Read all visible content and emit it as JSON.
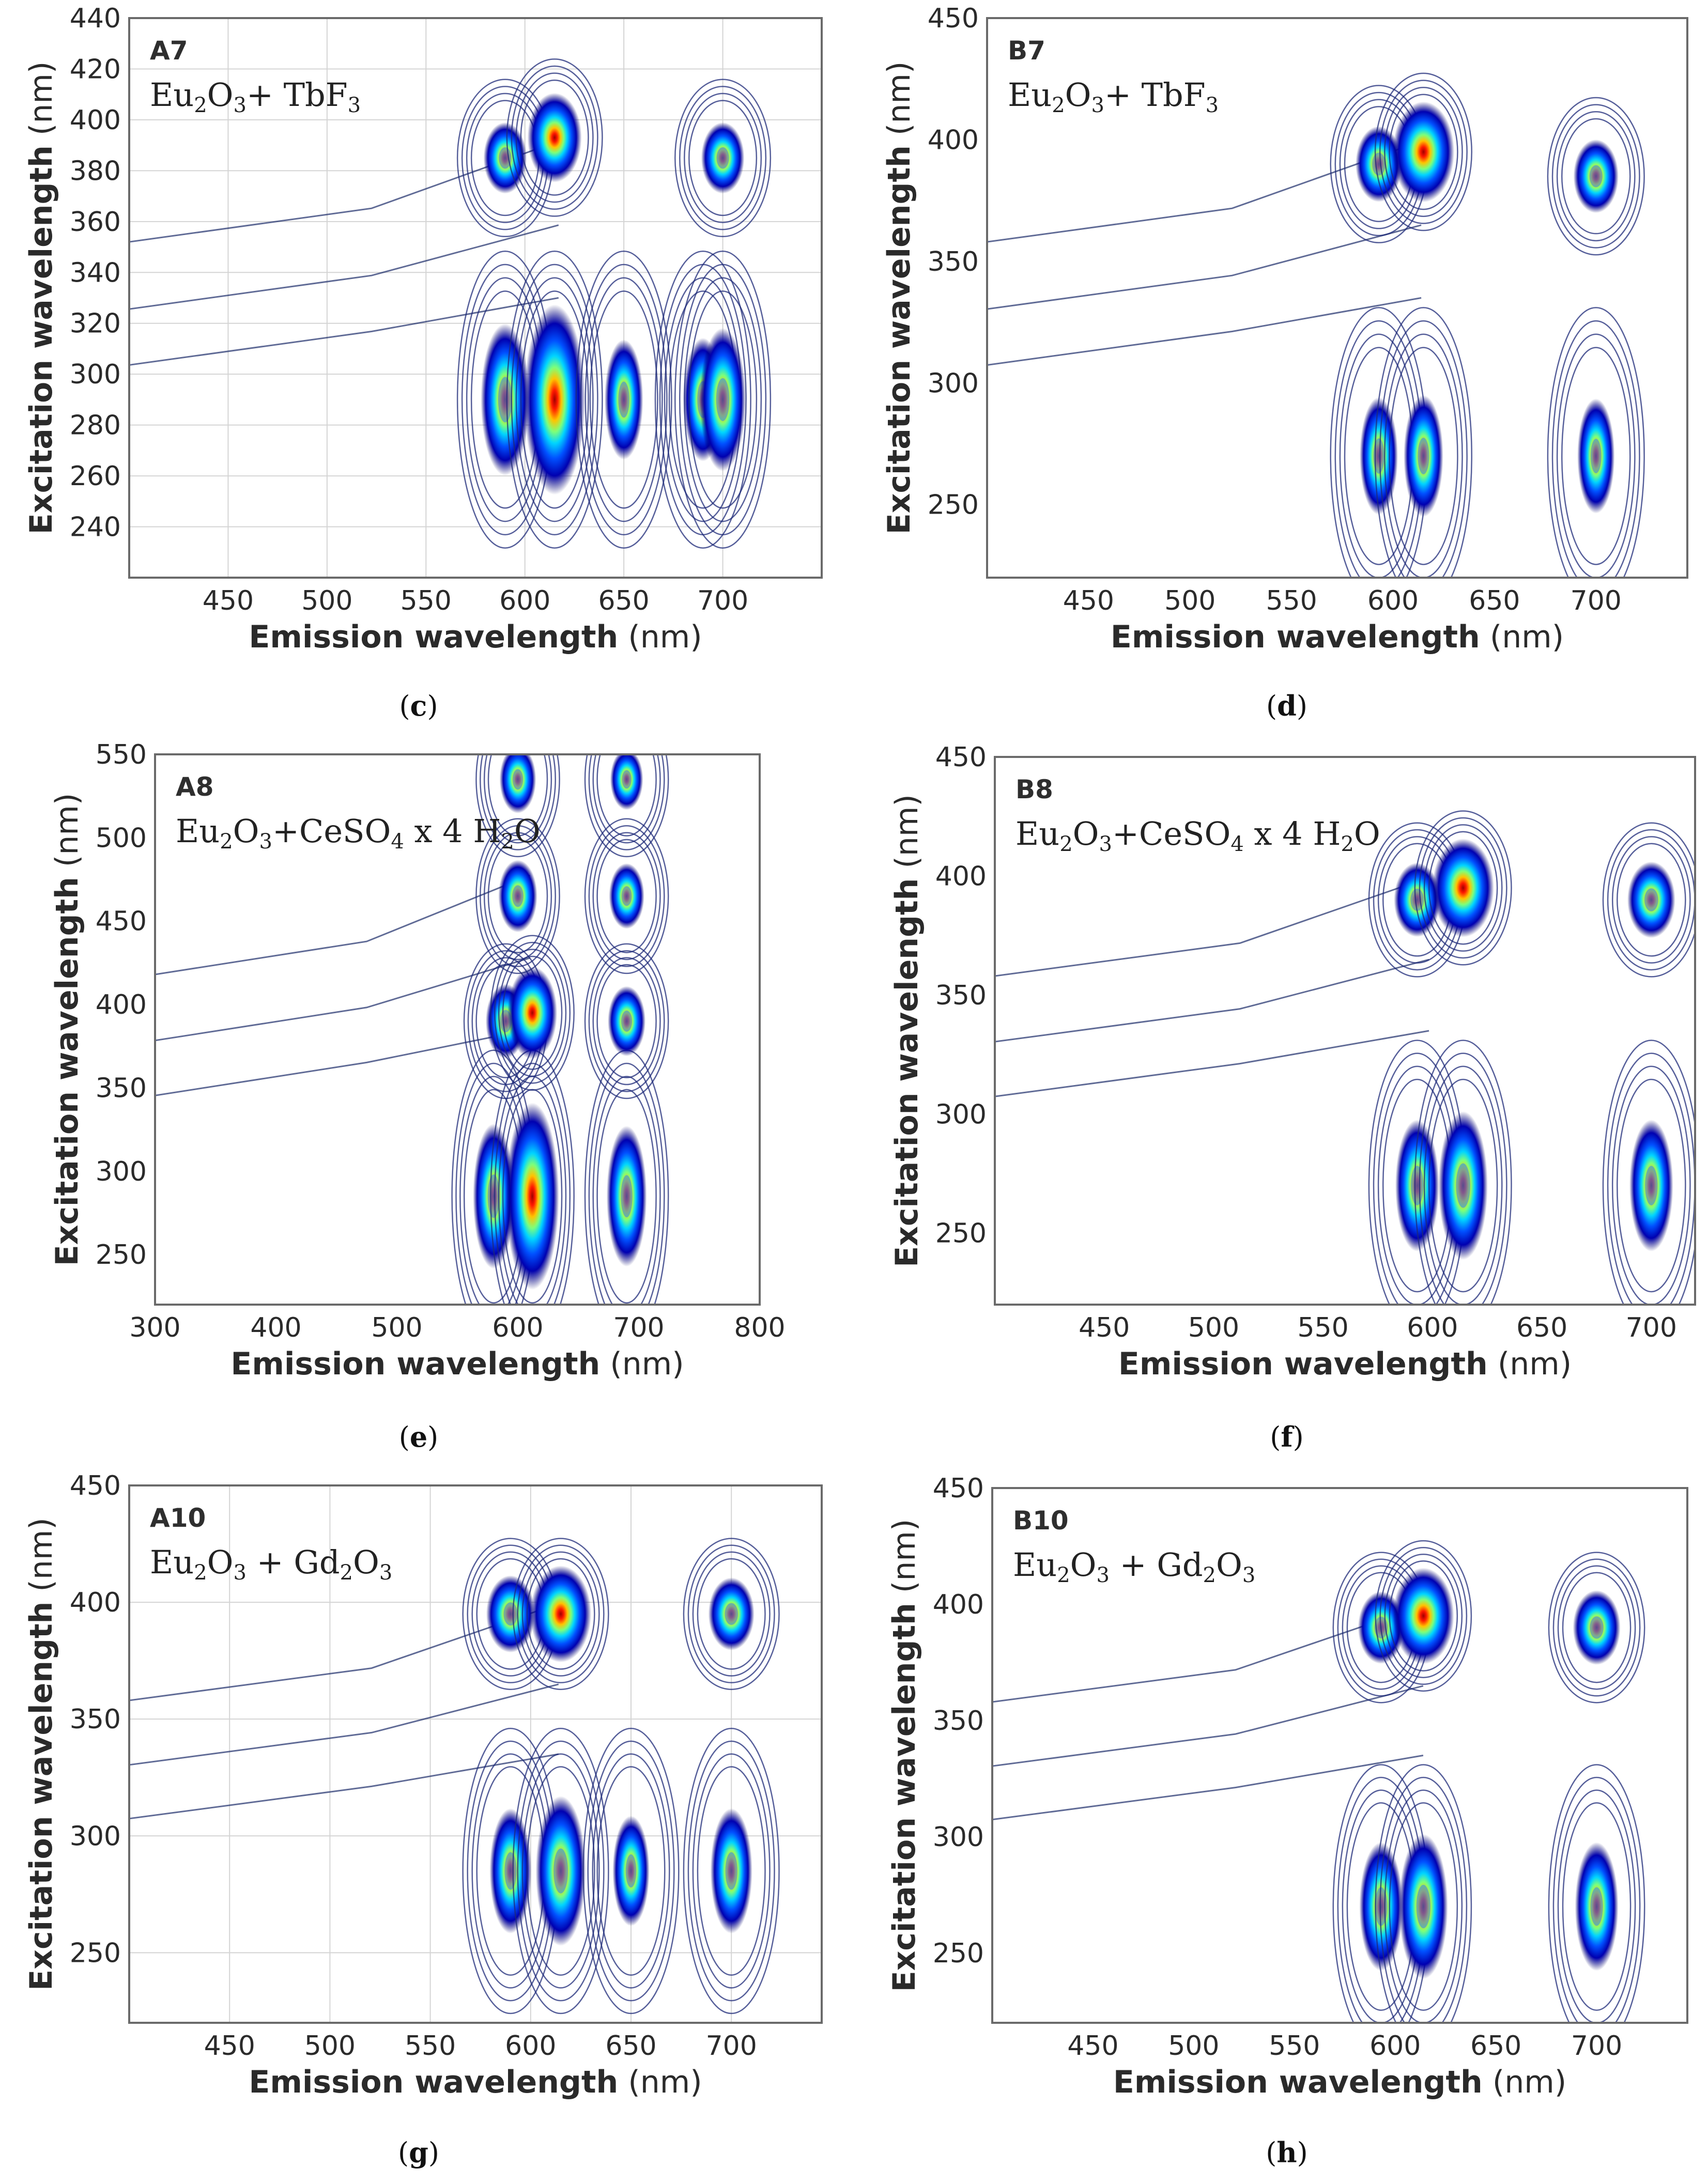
{
  "chart_data": [
    {
      "type": "heatmap",
      "panel": "c",
      "sample": "A7",
      "composition": [
        "Eu",
        "2",
        "O",
        "3",
        "+ TbF",
        "3",
        ""
      ],
      "xlabel": "Emission wavelength",
      "ylabel": "Excitation wavelength",
      "unit": "(nm)",
      "xlim": [
        400,
        750
      ],
      "ylim": [
        220,
        440
      ],
      "xticks": [
        450,
        500,
        550,
        600,
        650,
        700
      ],
      "yticks": [
        240,
        260,
        280,
        300,
        320,
        340,
        360,
        380,
        400,
        420,
        440
      ],
      "grid": true,
      "peaks": [
        {
          "em": 590,
          "ex": 290,
          "intensity": 0.55
        },
        {
          "em": 615,
          "ex": 290,
          "intensity": 1.0
        },
        {
          "em": 650,
          "ex": 290,
          "intensity": 0.18
        },
        {
          "em": 690,
          "ex": 290,
          "intensity": 0.22
        },
        {
          "em": 700,
          "ex": 290,
          "intensity": 0.45
        },
        {
          "em": 590,
          "ex": 385,
          "intensity": 0.35
        },
        {
          "em": 615,
          "ex": 393,
          "intensity": 0.75
        },
        {
          "em": 700,
          "ex": 385,
          "intensity": 0.35
        }
      ],
      "caption": "c"
    },
    {
      "type": "heatmap",
      "panel": "d",
      "sample": "B7",
      "composition": [
        "Eu",
        "2",
        "O",
        "3",
        "+ TbF",
        "3",
        ""
      ],
      "xlabel": "Emission wavelength",
      "ylabel": "Excitation wavelength",
      "unit": "(nm)",
      "xlim": [
        400,
        745
      ],
      "ylim": [
        220,
        450
      ],
      "xticks": [
        450,
        500,
        550,
        600,
        650,
        700
      ],
      "yticks": [
        250,
        300,
        350,
        400,
        450
      ],
      "grid": false,
      "peaks": [
        {
          "em": 593,
          "ex": 390,
          "intensity": 0.45
        },
        {
          "em": 615,
          "ex": 395,
          "intensity": 1.0
        },
        {
          "em": 700,
          "ex": 385,
          "intensity": 0.4
        },
        {
          "em": 593,
          "ex": 270,
          "intensity": 0.15
        },
        {
          "em": 615,
          "ex": 270,
          "intensity": 0.2
        },
        {
          "em": 700,
          "ex": 270,
          "intensity": 0.12
        }
      ],
      "caption": "d"
    },
    {
      "type": "heatmap",
      "panel": "e",
      "sample": "A8",
      "composition": [
        "Eu",
        "2",
        "O",
        "3",
        "+CeSO",
        "4",
        " x 4 H",
        "2",
        "O"
      ],
      "xlabel": "Emission wavelength",
      "ylabel": "Excitation wavelength",
      "unit": "(nm)",
      "xlim": [
        300,
        800
      ],
      "ylim": [
        220,
        550
      ],
      "xticks": [
        300,
        400,
        500,
        600,
        700,
        800
      ],
      "yticks": [
        250,
        300,
        350,
        400,
        450,
        500,
        550
      ],
      "grid": false,
      "peaks": [
        {
          "em": 580,
          "ex": 285,
          "intensity": 0.5
        },
        {
          "em": 612,
          "ex": 285,
          "intensity": 1.0
        },
        {
          "em": 690,
          "ex": 285,
          "intensity": 0.45
        },
        {
          "em": 590,
          "ex": 390,
          "intensity": 0.45
        },
        {
          "em": 612,
          "ex": 395,
          "intensity": 0.85
        },
        {
          "em": 690,
          "ex": 390,
          "intensity": 0.35
        },
        {
          "em": 600,
          "ex": 465,
          "intensity": 0.4
        },
        {
          "em": 690,
          "ex": 465,
          "intensity": 0.25
        },
        {
          "em": 600,
          "ex": 535,
          "intensity": 0.3
        },
        {
          "em": 690,
          "ex": 535,
          "intensity": 0.15
        }
      ],
      "caption": "e"
    },
    {
      "type": "heatmap",
      "panel": "f",
      "sample": "B8",
      "composition": [
        "Eu",
        "2",
        "O",
        "3",
        "+CeSO",
        "4",
        " x 4 H",
        "2",
        "O"
      ],
      "xlabel": "Emission wavelength",
      "ylabel": "Excitation wavelength",
      "unit": "(nm)",
      "xlim": [
        400,
        720
      ],
      "ylim": [
        220,
        450
      ],
      "xticks": [
        450,
        500,
        550,
        600,
        650,
        700
      ],
      "yticks": [
        250,
        300,
        350,
        400,
        450
      ],
      "grid": false,
      "peaks": [
        {
          "em": 593,
          "ex": 390,
          "intensity": 0.45
        },
        {
          "em": 614,
          "ex": 395,
          "intensity": 1.0
        },
        {
          "em": 700,
          "ex": 390,
          "intensity": 0.5
        },
        {
          "em": 593,
          "ex": 270,
          "intensity": 0.35
        },
        {
          "em": 614,
          "ex": 270,
          "intensity": 0.55
        },
        {
          "em": 700,
          "ex": 270,
          "intensity": 0.35
        }
      ],
      "caption": "f"
    },
    {
      "type": "heatmap",
      "panel": "g",
      "sample": "A10",
      "composition": [
        "Eu",
        "2",
        "O",
        "3",
        " + Gd",
        "2",
        "O",
        "3",
        ""
      ],
      "xlabel": "Emission wavelength",
      "ylabel": "Excitation wavelength",
      "unit": "(nm)",
      "xlim": [
        400,
        745
      ],
      "ylim": [
        220,
        450
      ],
      "xticks": [
        450,
        500,
        550,
        600,
        650,
        700
      ],
      "yticks": [
        250,
        300,
        350,
        400,
        450
      ],
      "grid": true,
      "peaks": [
        {
          "em": 590,
          "ex": 395,
          "intensity": 0.55
        },
        {
          "em": 615,
          "ex": 395,
          "intensity": 1.0
        },
        {
          "em": 700,
          "ex": 395,
          "intensity": 0.45
        },
        {
          "em": 590,
          "ex": 285,
          "intensity": 0.3
        },
        {
          "em": 615,
          "ex": 285,
          "intensity": 0.6
        },
        {
          "em": 650,
          "ex": 285,
          "intensity": 0.12
        },
        {
          "em": 700,
          "ex": 285,
          "intensity": 0.3
        }
      ],
      "caption": "g"
    },
    {
      "type": "heatmap",
      "panel": "h",
      "sample": "B10",
      "composition": [
        "Eu",
        "2",
        "O",
        "3",
        " + Gd",
        "2",
        "O",
        "3",
        ""
      ],
      "xlabel": "Emission wavelength",
      "ylabel": "Excitation wavelength",
      "unit": "(nm)",
      "xlim": [
        400,
        745
      ],
      "ylim": [
        220,
        450
      ],
      "xticks": [
        450,
        500,
        550,
        600,
        650,
        700
      ],
      "yticks": [
        250,
        300,
        350,
        400,
        450
      ],
      "grid": false,
      "peaks": [
        {
          "em": 593,
          "ex": 390,
          "intensity": 0.45
        },
        {
          "em": 614,
          "ex": 395,
          "intensity": 1.0
        },
        {
          "em": 700,
          "ex": 390,
          "intensity": 0.5
        },
        {
          "em": 593,
          "ex": 270,
          "intensity": 0.35
        },
        {
          "em": 614,
          "ex": 270,
          "intensity": 0.55
        },
        {
          "em": 700,
          "ex": 270,
          "intensity": 0.35
        }
      ],
      "caption": "h"
    }
  ]
}
